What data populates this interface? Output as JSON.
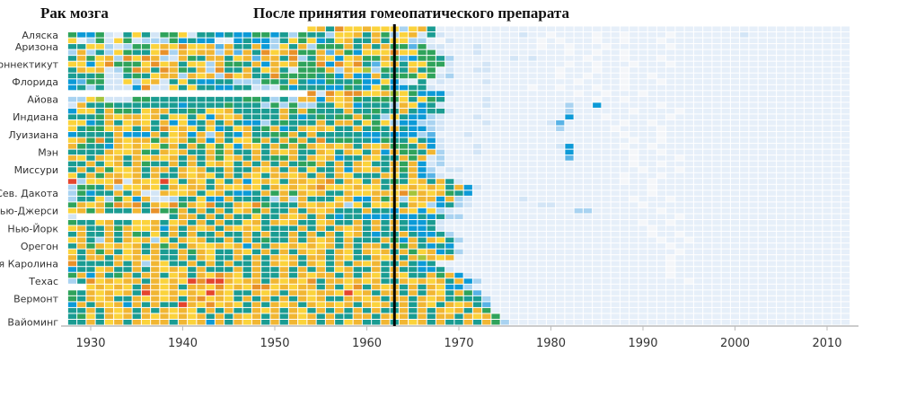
{
  "chart_data": {
    "type": "heatmap",
    "title": "Рак мозга",
    "annotation": "После принятия гомеопатического препарата",
    "annotation_year": 1963,
    "x_start": 1928,
    "x_end": 2012,
    "xticks": [
      "1930",
      "1940",
      "1950",
      "1960",
      "1970",
      "1980",
      "1990",
      "2000",
      "2010"
    ],
    "row_labels": [
      "Аляска",
      "Аризона",
      "Коннектикут",
      "Флорида",
      "Айова",
      "Индиана",
      "Луизиана",
      "Мэн",
      "Миссури",
      "Сев. Дакота",
      "Нью-Джерси",
      "Нью-Йорк",
      "Орегон",
      "Южная Каролина",
      "Техас",
      "Вермонт",
      "Вайоминг"
    ],
    "label_rows": [
      1,
      3,
      6,
      9,
      12,
      15,
      18,
      21,
      24,
      28,
      31,
      34,
      37,
      40,
      43,
      46,
      50
    ],
    "level_colors": {
      ".": "#ffffff",
      "0": "#f4f6f9",
      "1": "#e6eff9",
      "2": "#d3e5f6",
      "3": "#a9d3f1",
      "4": "#58b3e6",
      "5": "#0c9ad7",
      "6": "#1a9c92",
      "7": "#2fa35b",
      "8": "#a4c43c",
      "9": "#fbd33c",
      "a": "#f1b633",
      "b": "#e8912a",
      "c": "#e5452d"
    },
    "rows": [
      "..........................9a6b99a99939a6",
      "7557216962779266565577563766399a6a739a262111111112110111101101111011111112111111111111111",
      "913729723337565511565536979569a66a69933102111111111010111011011101111111111111111111111",
      "6699323779a9b99a4a66a5396a3777a6a6a77472211121111110110111011111101111111111111111111111",
      "3a36397669b3a9aa3a4a6b9ab77a4a75999b99772111211111111101101101111111111111111111111111111",
      "6a79a3b9ba32a76aa69a4aa6b36a959a77a74577631111112121111101110111011111111111111111111111",
      "9959b7779b9a6993a776a5a9a77b5b9b649a699772111211111111011011101110111111111111111111111111",
      "6a9a237ba6ba76a3b66a69a62777a3a983766a6712112211111110111011011111111111111111111111111",
      "6667226769aa3a9a3b9a66b7777675a55a6777972311111111111011011101101111111111111111111111",
      "547722939a26965566333776a655766755952161211112111111111011110111011111111111111111111111",
      "56362225b22969665566232756665576597556621111111111011011101101111111111111111111111111",
      "..........................b2b9bb99a897555211111111111110110111011111111111111111111111",
      "3398222776666666666776363aa5a9a76777969761111211111111111011011111111111111111111111111",
      "2a6676666666566667666373733669a56663a956211112111111113115111111011111111111111111111111",
      "5996a7769aa667699a66666a7a7666a66766a65662111111111111311111101111011111111111111111111",
      "6667a9aa9a699695a9a6666a6567677a76396553211121111111115111011111101111111111111111111111",
      "9956a69a96a5956a6a655367666a6aa6979355332111121111112411111101101111111111111111111111",
      "96779a96a6b9a969569a67a56a9a966a676a65532111111111111311111011110111111111111111111111",
      "56666a555a69a5a3a65a6677a6a6666655655534111211111111111111110111011111111111111111111111",
      "9a7b6a9aa7a9a7a5a6997a6a7a6b67766576696521111111111111111111101101111111111111111111111",
      "a7665a9a997a6a79795a96a7a7a9a9a6a9a776a521112111111112511111011011111111111111111111111",
      "6666a99a76a9a66a7a66a6a9a66a96a96a5a776a3111211111111151111110110111111111111111111111",
      "a96a9a6a9a9a6a6a79a6a677a6a9a566a966a7a231111111111111411111101111011111111111111111111",
      "66a69a6a766a6a69a96a6a6a677a6a6a966a7a52311111111111111111111011011111111111111111111111",
      "6a6a799a6aa6a9a66a66a9a6a6966a5a9a6a7a5312211111111111111111110111011111111111111111111",
      "96a7aa9a6a66a9a96a6a96aa9a6a6a9666a96a5421111111111111111111011101111111111111111111111",
      "c3999b2a99c96a9696a59a96aa9ab6a96a6769a6a6211111111111111111011011111111111111111111111",
      "3776a399a96a9aa6a99a96a9a9ab999a996a9a9a96a5211111111111111111101111111111111111111111",
      "37566a6a22a99a69a6556a7a7a9a66a99aa9b8a9a7651111111111111111111011111111111111111111111",
      "36693795a22366955a66663a3a6669a55a7a39aa5a3211111211111111111011101111111111111111111111",
      "7a9a7bab6a9b7a9b66a9b7666a9a9a3969996a9356321111111221111111110111111111111111111111111",
      "9a7a666a6b77a6a6a69a7a66a6a9a666a665a95932111111111111133111111101111111111111111111111",
      "2..........6aa6a6a66966a9a6a6566555655656331111111111111111111111101111111111111111111111",
      "7669a6699a69a6a6a669a6a9a669a66a6a6a6556211111111111111111111101101111111111111111111111",
      "9a66a7a99a5a6a9a6a9a96666a6a6a9a6a6a6556211111111111111111111110111111111111111111111111",
      "6a66a6a7696a6a66a66a6a66a6a6a69a6566a65563111111111111111111111011011111111111111111111",
      "9a63a6a9a396a9a66a6a6766a6a9a6a666a75a6a96311111111111111111111101101111111111111111111",
      "6a7a9a9a6a7a6a99a9a5a6a9a9a9a6a6aa6a7a656511111111111111111111111011111111111111111111",
      "96a7a69a6a66a7a966a96a6a6a9a6a96a9a6a79a5631111111111111111111111101111111111111111111",
      "a6aa6a9a9a66a6a966a6a6a9a6aa6a966a9a6a8a9a11111111111111111111111011111111111111111111",
      "b6666a6a3a966a6a6a66a6a9a6a96a6a9a66a656111111111111111111111111101111111111111111111",
      "5669a66a6a9a96a666a6a66a6a6a69a66a6a665562111111111111111111111110111111111111111111111",
      "7a5a67a6aa69a6a9ba96a66a6a9aa6a6a96a966a7a5211111111111111111111101111111111111111111111",
      "36b9a9aa6a9a9cbcca9aa6a9a9b6aa9a9a66a9a9a6a5311111111111111111111110111111111111111111111",
      "..9a9a96ba9a6aa9b9a9bb9a9aa6a69b6a9a6a6a955311111111111111111111111111111111111111111111",
      "76a9a9a6ca9a9a9ca966a9a6aa9aa9c9a6aa6a6a96a7411111111111111111111111111111111111111111111",
      "76a9a66a9a9a6ab9a96a6a6a6a9a66aa9a6aa6a9a6766311111111111111111111111111111111111111111",
      "5a6a9a5a6a66ca9b9a96a6a9a6a9a9a6a9a6a6a96a9a6411111111111111111111111111111111111111111",
      "66a6a9a6a6a9a96a6a66a9a6a96a6a6a6a66a6a6a9a6a7111111111111111111111111111111111111111111",
      "6796a9a6a9a9a9a6a6a9a6a6a9a6a66aa6a9a6a6aa6a9a71111111111111111111111111111111111111111",
      "66a69a6a9aa6a9a5a6a9a6a6a9a6a69a66a6a9a6a66a6a7311111111111111111111111111111111111111"
    ]
  }
}
